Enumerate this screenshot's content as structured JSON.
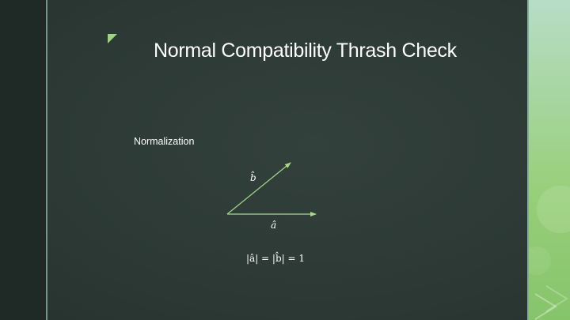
{
  "slide": {
    "title": "Normal Compatibility Thrash Check",
    "subtitle": "Normalization",
    "labels": {
      "b_hat": "b̂",
      "a_hat": "â"
    },
    "equation": "|â| = |b̂| = 1"
  },
  "colors": {
    "background": "#2c3935",
    "left_band": "#1f2a27",
    "accent_green": "#9fd37e",
    "arrow": "#a6d98a",
    "text": "#ffffff"
  },
  "icons": {
    "corner_mark": "triangle-corner-icon",
    "arrow_b": "arrow-icon",
    "arrow_a": "arrow-icon"
  }
}
